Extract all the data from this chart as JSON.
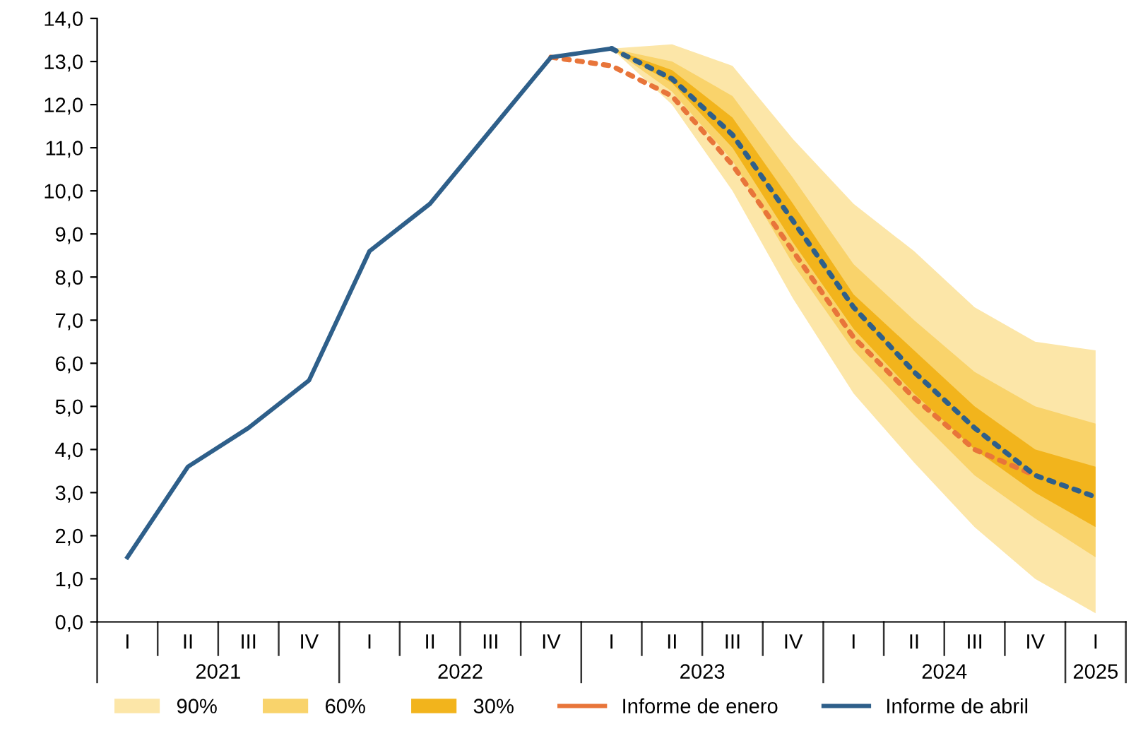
{
  "chart_data": {
    "type": "line",
    "categories": [
      "I",
      "II",
      "III",
      "IV",
      "I",
      "II",
      "III",
      "IV",
      "I",
      "II",
      "III",
      "IV",
      "I",
      "II",
      "III",
      "IV",
      "I"
    ],
    "series": [
      {
        "name": "90%",
        "type": "line",
        "color": "#fce6a8",
        "values": [
          null,
          null,
          null,
          null,
          null,
          null,
          null,
          null,
          null,
          null,
          null,
          null,
          null,
          null,
          null,
          null,
          null
        ],
        "lower": [
          null,
          null,
          null,
          null,
          null,
          null,
          null,
          null,
          13.3,
          12.0,
          10.0,
          7.5,
          5.3,
          3.7,
          2.2,
          1.0,
          0.2
        ],
        "upper": [
          null,
          null,
          null,
          null,
          null,
          null,
          null,
          null,
          13.3,
          13.4,
          12.9,
          11.2,
          9.7,
          8.6,
          7.3,
          6.5,
          6.3
        ]
      },
      {
        "name": "60%",
        "type": "line",
        "color": "#f9d36b",
        "values": [
          null,
          null,
          null,
          null,
          null,
          null,
          null,
          null,
          null,
          null,
          null,
          null,
          null,
          null,
          null,
          null,
          null
        ],
        "lower": [
          null,
          null,
          null,
          null,
          null,
          null,
          null,
          null,
          13.3,
          12.3,
          10.7,
          8.3,
          6.3,
          4.8,
          3.4,
          2.4,
          1.5
        ],
        "upper": [
          null,
          null,
          null,
          null,
          null,
          null,
          null,
          null,
          13.3,
          13.0,
          12.2,
          10.3,
          8.3,
          7.0,
          5.8,
          5.0,
          4.6
        ]
      },
      {
        "name": "30%",
        "type": "line",
        "color": "#f2b41c",
        "values": [
          null,
          null,
          null,
          null,
          null,
          null,
          null,
          null,
          null,
          null,
          null,
          null,
          null,
          null,
          null,
          null,
          null
        ],
        "lower": [
          null,
          null,
          null,
          null,
          null,
          null,
          null,
          null,
          13.3,
          12.5,
          11.0,
          8.8,
          6.8,
          5.3,
          4.0,
          3.0,
          2.2
        ],
        "upper": [
          null,
          null,
          null,
          null,
          null,
          null,
          null,
          null,
          13.3,
          12.8,
          11.7,
          9.7,
          7.6,
          6.3,
          5.0,
          4.0,
          3.6
        ]
      },
      {
        "name": "Informe de enero",
        "type": "line",
        "line_style": "dotted",
        "color": "#e8753a",
        "values": [
          null,
          null,
          null,
          null,
          null,
          null,
          null,
          13.1,
          12.9,
          12.2,
          10.6,
          8.6,
          6.6,
          5.2,
          4.0,
          3.4,
          null
        ]
      },
      {
        "name": "Informe de abril",
        "type": "line",
        "line_style": "solid",
        "color": "#2e5f8a",
        "values": [
          1.5,
          3.6,
          4.5,
          5.6,
          8.6,
          9.7,
          11.4,
          13.1,
          13.3,
          null,
          null,
          null,
          null,
          null,
          null,
          null,
          null
        ]
      },
      {
        "type": "line",
        "line_style": "dotted",
        "color": "#2e5f8a",
        "values": [
          null,
          null,
          null,
          null,
          null,
          null,
          null,
          null,
          13.3,
          12.6,
          11.3,
          9.3,
          7.3,
          5.8,
          4.5,
          3.4,
          2.9
        ]
      }
    ],
    "annotations": [
      "2021",
      "2022",
      "2023",
      "2024",
      "2025"
    ],
    "ylim": [
      0,
      14
    ],
    "yticks": [
      {
        "value": 0,
        "label": "0,0"
      },
      {
        "value": 1,
        "label": "1,0"
      },
      {
        "value": 2,
        "label": "2,0"
      },
      {
        "value": 3,
        "label": "3,0"
      },
      {
        "value": 4,
        "label": "4,0"
      },
      {
        "value": 5,
        "label": "5,0"
      },
      {
        "value": 6,
        "label": "6,0"
      },
      {
        "value": 7,
        "label": "7,0"
      },
      {
        "value": 8,
        "label": "8,0"
      },
      {
        "value": 9,
        "label": "9,0"
      },
      {
        "value": 10,
        "label": "10,0"
      },
      {
        "value": 11,
        "label": "11,0"
      },
      {
        "value": 12,
        "label": "12,0"
      },
      {
        "value": 13,
        "label": "13,0"
      },
      {
        "value": 14,
        "label": "14,0"
      }
    ],
    "grid": false,
    "marker": "none",
    "legend": "bottom"
  }
}
